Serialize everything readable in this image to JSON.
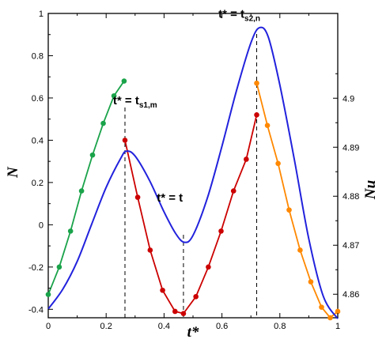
{
  "chart_data": {
    "type": "line",
    "xlabel": "t*",
    "ylabel_left": "N",
    "ylabel_right": "Nu",
    "xlim": [
      0,
      1
    ],
    "ylim_left": [
      -0.44,
      1.0
    ],
    "ylim_right": [
      4.8552,
      4.9173
    ],
    "x_ticks": [
      0,
      0.2,
      0.4,
      0.6,
      0.8,
      1
    ],
    "x_tick_labels": [
      "0",
      "0.2",
      "0.4",
      "0.6",
      "0.8",
      "1"
    ],
    "y_left_ticks": [
      -0.4,
      -0.2,
      0,
      0.2,
      0.4,
      0.6,
      0.8,
      1
    ],
    "y_left_tick_labels": [
      "-0.4",
      "-0.2",
      "0",
      "0.2",
      "0.4",
      "0.6",
      "0.8",
      "1"
    ],
    "y_right_ticks": [
      4.86,
      4.87,
      4.88,
      4.89,
      4.9
    ],
    "y_right_tick_labels": [
      "4.86",
      "4.87",
      "4.88",
      "4.89",
      "4.9"
    ],
    "grid": false,
    "series": [
      {
        "color": "#1aa34a",
        "axis": "left",
        "marker": true,
        "x": [
          0.0,
          0.038,
          0.077,
          0.115,
          0.153,
          0.19,
          0.227,
          0.262
        ],
        "y": [
          -0.33,
          -0.2,
          -0.03,
          0.16,
          0.33,
          0.48,
          0.61,
          0.68
        ]
      },
      {
        "color": "#cc0000",
        "axis": "left",
        "marker": true,
        "x": [
          0.265,
          0.309,
          0.352,
          0.395,
          0.438,
          0.467,
          0.51,
          0.553,
          0.597,
          0.64,
          0.684,
          0.72
        ],
        "y": [
          0.4,
          0.13,
          -0.12,
          -0.31,
          -0.41,
          -0.42,
          -0.34,
          -0.2,
          -0.03,
          0.16,
          0.31,
          0.52
        ]
      },
      {
        "color": "#ff8800",
        "axis": "left",
        "marker": true,
        "x": [
          0.72,
          0.757,
          0.794,
          0.832,
          0.87,
          0.907,
          0.944,
          0.974,
          1.0
        ],
        "y": [
          0.67,
          0.47,
          0.29,
          0.07,
          -0.12,
          -0.27,
          -0.39,
          -0.44,
          -0.41
        ]
      },
      {
        "color": "#2222dd",
        "axis": "right",
        "marker": false,
        "x": [
          0.0,
          0.05,
          0.1,
          0.15,
          0.2,
          0.25,
          0.27,
          0.3,
          0.35,
          0.4,
          0.44,
          0.47,
          0.5,
          0.55,
          0.6,
          0.65,
          0.7,
          0.73,
          0.76,
          0.8,
          0.85,
          0.9,
          0.95,
          1.0
        ],
        "y": [
          4.857,
          4.861,
          4.8667,
          4.8743,
          4.8818,
          4.8877,
          4.8892,
          4.8882,
          4.8832,
          4.8768,
          4.8724,
          4.8706,
          4.872,
          4.8797,
          4.8902,
          4.9015,
          4.9113,
          4.9144,
          4.9125,
          4.9027,
          4.8875,
          4.8713,
          4.8596,
          4.855
        ]
      }
    ],
    "guide_lines_x": [
      0.265,
      0.467,
      0.72
    ],
    "annotations": [
      {
        "main": "t* = t",
        "sub": "s1,m",
        "x": 0.3,
        "y": 0.57
      },
      {
        "main": "t* = t",
        "sub": "",
        "x": 0.42,
        "y": 0.11
      },
      {
        "main": "t* = t",
        "sub": "s2,n",
        "x": 0.66,
        "y": 0.98
      }
    ]
  }
}
